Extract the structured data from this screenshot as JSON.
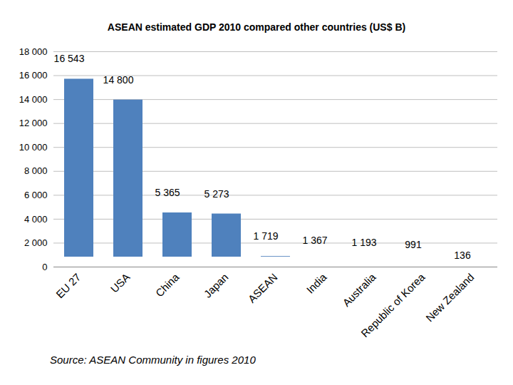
{
  "chart_data": {
    "type": "bar",
    "title": "ASEAN estimated GDP 2010 compared other countries (US$ B)",
    "caption": "Source: ASEAN Community in figures 2010",
    "categories": [
      "EU 27",
      "USA",
      "China",
      "Japan",
      "ASEAN",
      "India",
      "Australia",
      "Republic of Korea",
      "New Zealand"
    ],
    "values": [
      16543,
      14800,
      5365,
      5273,
      1719,
      1367,
      1193,
      991,
      136
    ],
    "value_labels": [
      "16 543",
      "14 800",
      "5 365",
      "5 273",
      "1 719",
      "1 367",
      "1 193",
      "991",
      "136"
    ],
    "data_labels": true,
    "color": "#4f81bd",
    "ylim": [
      0,
      18000
    ],
    "yticks": [
      0,
      {
        "value": 2000,
        "label": "2 000"
      },
      {
        "value": 4000,
        "label": "4 000"
      },
      {
        "value": 6000,
        "label": "6 000"
      },
      {
        "value": 8000,
        "label": "8 000"
      },
      {
        "value": 10000,
        "label": "10 000"
      },
      {
        "value": 12000,
        "label": "12 000"
      },
      {
        "value": 14000,
        "label": "14 000"
      },
      {
        "value": 16000,
        "label": "16 000"
      },
      {
        "value": 18000,
        "label": "18 000"
      }
    ],
    "grid": true
  }
}
